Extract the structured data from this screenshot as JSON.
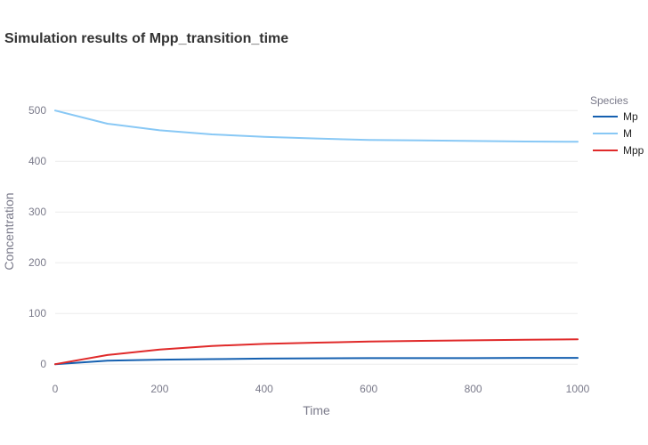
{
  "chart_data": {
    "type": "line",
    "title": "Simulation results of Mpp_transition_time",
    "xlabel": "Time",
    "ylabel": "Concentration",
    "xlim": [
      0,
      1000
    ],
    "ylim": [
      -40,
      560
    ],
    "xticks": [
      0,
      200,
      400,
      600,
      800,
      1000
    ],
    "yticks": [
      0,
      100,
      200,
      300,
      400,
      500
    ],
    "grid": true,
    "legend_title": "Species",
    "legend_position": "top-right",
    "x": [
      0,
      100,
      200,
      300,
      400,
      500,
      600,
      700,
      800,
      900,
      1000
    ],
    "series": [
      {
        "name": "Mp",
        "color": "#1560b0",
        "values": [
          0,
          7,
          9,
          10,
          11,
          11.5,
          12,
          12,
          12,
          12.5,
          12.5
        ]
      },
      {
        "name": "M",
        "color": "#88c8f5",
        "values": [
          500,
          474,
          461,
          453,
          448,
          445,
          442,
          441,
          440,
          439,
          438.5
        ]
      },
      {
        "name": "Mpp",
        "color": "#e02a2a",
        "values": [
          0,
          18,
          29,
          36,
          40,
          42.5,
          44.5,
          46,
          47,
          48,
          49
        ]
      }
    ]
  }
}
